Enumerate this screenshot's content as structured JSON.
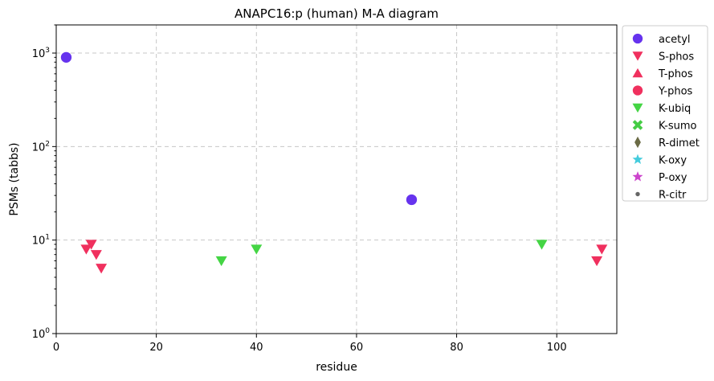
{
  "chart_data": {
    "type": "scatter",
    "title": "ANAPC16:p (human) M-A diagram",
    "xlabel": "residue",
    "ylabel": "PSMs (tabbs)",
    "xlim": [
      0,
      112
    ],
    "ylim": [
      1,
      2000
    ],
    "yscale": "log",
    "grid": true,
    "legend_position": "outside-right",
    "x_ticks": [
      "0",
      "20",
      "40",
      "60",
      "80",
      "100"
    ],
    "x_tick_values": [
      0,
      20,
      40,
      60,
      80,
      100
    ],
    "y_ticks": [
      {
        "value": 1,
        "base": "10",
        "exp": "0"
      },
      {
        "value": 10,
        "base": "10",
        "exp": "1"
      },
      {
        "value": 100,
        "base": "10",
        "exp": "2"
      },
      {
        "value": 1000,
        "base": "10",
        "exp": "3"
      }
    ],
    "series": [
      {
        "name": "acetyl",
        "marker": "circle",
        "color": "#6633ee",
        "points": [
          [
            2,
            900
          ],
          [
            71,
            27
          ]
        ]
      },
      {
        "name": "S-phos",
        "marker": "triangle-down",
        "color": "#f0305e",
        "points": [
          [
            6,
            8
          ],
          [
            7,
            9
          ],
          [
            8,
            7
          ],
          [
            9,
            5
          ],
          [
            108,
            6
          ],
          [
            109,
            8
          ]
        ]
      },
      {
        "name": "T-phos",
        "marker": "triangle-up",
        "color": "#f0305e",
        "points": []
      },
      {
        "name": "Y-phos",
        "marker": "circle",
        "color": "#f0305e",
        "points": []
      },
      {
        "name": "K-ubiq",
        "marker": "triangle-down",
        "color": "#44d544",
        "points": [
          [
            33,
            6
          ],
          [
            40,
            8
          ],
          [
            97,
            9
          ]
        ]
      },
      {
        "name": "K-sumo",
        "marker": "x",
        "color": "#44cc44",
        "points": []
      },
      {
        "name": "R-dimet",
        "marker": "diamond",
        "color": "#6b6b45",
        "points": []
      },
      {
        "name": "K-oxy",
        "marker": "star",
        "color": "#44ccdd",
        "points": []
      },
      {
        "name": "P-oxy",
        "marker": "star",
        "color": "#cc44cc",
        "points": []
      },
      {
        "name": "R-citr",
        "marker": "small-circle",
        "color": "#666666",
        "points": []
      }
    ]
  }
}
